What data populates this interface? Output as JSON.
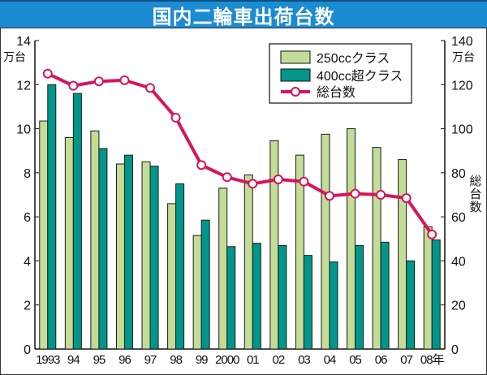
{
  "chart_data": {
    "type": "bar",
    "title": "国内二輪車出荷台数",
    "categories": [
      "1993",
      "94",
      "95",
      "96",
      "97",
      "98",
      "99",
      "2000",
      "01",
      "02",
      "03",
      "04",
      "05",
      "06",
      "07",
      "08年"
    ],
    "series": [
      {
        "name": "250ccクラス",
        "axis": "left",
        "kind": "bar",
        "color": "#c3dc98",
        "values": [
          10.35,
          9.6,
          9.9,
          8.4,
          8.5,
          6.6,
          5.15,
          7.3,
          7.9,
          9.45,
          8.8,
          9.75,
          10.0,
          9.15,
          8.6,
          5.55
        ]
      },
      {
        "name": "400cc超クラス",
        "axis": "left",
        "kind": "bar",
        "color": "#00968a",
        "values": [
          12.0,
          11.6,
          9.1,
          8.8,
          8.3,
          7.5,
          5.85,
          4.65,
          4.8,
          4.7,
          4.25,
          3.95,
          4.7,
          4.85,
          4.0,
          4.95
        ]
      },
      {
        "name": "総台数",
        "axis": "right",
        "kind": "line",
        "color": "#d6165a",
        "values": [
          125,
          119.5,
          121.5,
          122,
          118.5,
          105,
          83.5,
          78,
          75,
          77,
          76,
          69.5,
          70.5,
          70,
          68.5,
          52
        ]
      }
    ],
    "left_axis": {
      "unit": "万台",
      "ylim": [
        0,
        14
      ],
      "ticks": [
        0,
        2,
        4,
        6,
        8,
        10,
        12,
        14
      ]
    },
    "right_axis": {
      "unit": "万台",
      "label": "総台数",
      "ylim": [
        0,
        140
      ],
      "ticks": [
        0,
        20,
        40,
        60,
        80,
        100,
        120,
        140
      ]
    },
    "legend_position": "top-right",
    "grid": false
  }
}
